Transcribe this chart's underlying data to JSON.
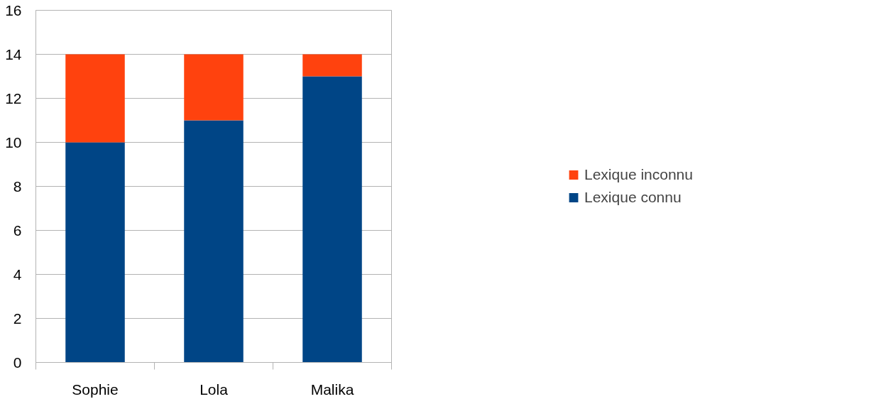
{
  "chart_data": {
    "type": "bar",
    "stacked": true,
    "categories": [
      "Sophie",
      "Lola",
      "Malika"
    ],
    "series": [
      {
        "name": "Lexique connu",
        "color": "#004586",
        "values": [
          10,
          11,
          13
        ]
      },
      {
        "name": "Lexique inconnu",
        "color": "#ff420e",
        "values": [
          4,
          3,
          1
        ]
      }
    ],
    "ylim": [
      0,
      16
    ],
    "yticks": [
      0,
      2,
      4,
      6,
      8,
      10,
      12,
      14,
      16
    ],
    "grid": "y",
    "legend": "right"
  }
}
